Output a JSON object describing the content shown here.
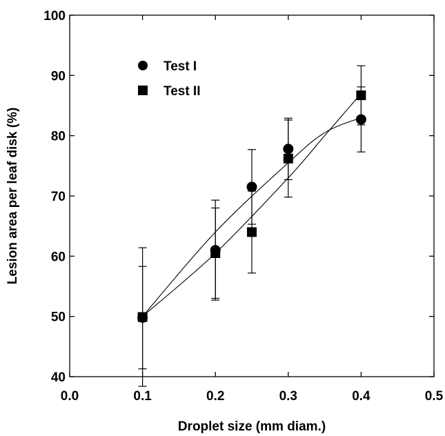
{
  "chart_data": {
    "type": "scatter",
    "title": "",
    "xlabel": "Droplet size (mm diam.)",
    "ylabel": "Lesion area per leaf disk (%)",
    "xlim": [
      0.0,
      0.5
    ],
    "ylim": [
      40,
      100
    ],
    "x_ticks": [
      "0.0",
      "0.1",
      "0.2",
      "0.3",
      "0.4",
      "0.5"
    ],
    "y_ticks": [
      "40",
      "50",
      "60",
      "70",
      "80",
      "90",
      "100"
    ],
    "grid": false,
    "legend_position": "top-left",
    "series": [
      {
        "name": "Test I",
        "marker": "circle",
        "x": [
          0.1,
          0.2,
          0.25,
          0.3,
          0.4
        ],
        "y": [
          49.8,
          61.0,
          71.5,
          77.8,
          82.7
        ],
        "error": [
          8.5,
          8.3,
          6.2,
          5.1,
          5.4
        ],
        "fit_line": [
          [
            0.1,
            50.0
          ],
          [
            0.2,
            64.0
          ],
          [
            0.3,
            75.5
          ],
          [
            0.35,
            80.5
          ],
          [
            0.4,
            83.0
          ]
        ]
      },
      {
        "name": "Test II",
        "marker": "square",
        "x": [
          0.1,
          0.2,
          0.25,
          0.3,
          0.4
        ],
        "y": [
          49.9,
          60.5,
          64.0,
          76.2,
          86.7
        ],
        "error": [
          11.5,
          7.5,
          6.8,
          6.4,
          4.9
        ],
        "fit_line": [
          [
            0.1,
            50.0
          ],
          [
            0.2,
            60.5
          ],
          [
            0.3,
            73.0
          ],
          [
            0.35,
            80.0
          ],
          [
            0.4,
            87.0
          ]
        ]
      }
    ]
  }
}
